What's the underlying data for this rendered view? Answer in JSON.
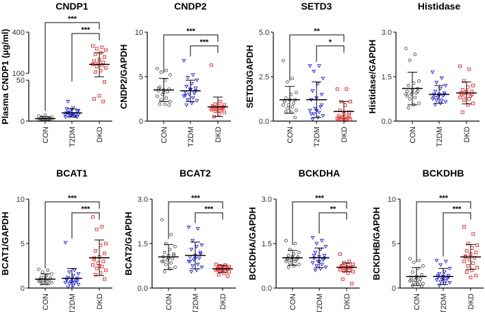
{
  "chart_data": [
    {
      "type": "scatter",
      "title": "CNDP1",
      "ylabel": "Plasma CNDP1 (µg/ml)",
      "categories": [
        "CON",
        "T2DM",
        "DKD"
      ],
      "ylim": [
        0,
        400
      ],
      "axis_break": [
        50,
        100
      ],
      "yticks": [
        0,
        50,
        100,
        400
      ],
      "ytick_labels": [
        "0",
        "50",
        "100",
        "400"
      ],
      "groups": [
        {
          "mean": 3,
          "sd": 2.5,
          "points": [
            1,
            2,
            3,
            2,
            4,
            5,
            3,
            2,
            1,
            3,
            4,
            6,
            2,
            3,
            5,
            2,
            1,
            3,
            7,
            2
          ]
        },
        {
          "mean": 10,
          "sd": 5,
          "points": [
            5,
            6,
            7,
            8,
            9,
            10,
            12,
            14,
            15,
            6,
            7,
            8,
            9,
            11,
            13,
            16,
            24,
            5,
            7,
            10
          ]
        },
        {
          "mean": 165,
          "sd": 85,
          "points": [
            300,
            290,
            280,
            270,
            250,
            240,
            220,
            200,
            190,
            180,
            170,
            165,
            160,
            150,
            140,
            120,
            110,
            48,
            31,
            27,
            24
          ]
        }
      ],
      "significance": [
        {
          "from": 0,
          "to": 2,
          "label": "***"
        },
        {
          "from": 1,
          "to": 2,
          "label": "***"
        }
      ]
    },
    {
      "type": "scatter",
      "title": "CNDP2",
      "ylabel": "CNDP2/GAPDH",
      "categories": [
        "CON",
        "T2DM",
        "DKD"
      ],
      "ylim": [
        0,
        10
      ],
      "yticks": [
        0,
        5,
        10
      ],
      "ytick_labels": [
        "0",
        "5",
        "10"
      ],
      "groups": [
        {
          "mean": 3.5,
          "sd": 1.3,
          "points": [
            5.9,
            5.7,
            5.5,
            5.2,
            4.6,
            3.8,
            3.6,
            3.5,
            3.4,
            3.3,
            3.0,
            2.8,
            2.6,
            2.4,
            2.2,
            1.9,
            1.9,
            1.8,
            3.2,
            3.7
          ]
        },
        {
          "mean": 3.4,
          "sd": 1.2,
          "points": [
            6.8,
            5.2,
            4.9,
            4.6,
            4.2,
            3.9,
            3.7,
            3.5,
            3.3,
            3.1,
            3.0,
            2.8,
            2.6,
            2.4,
            2.3,
            2.0,
            1.8,
            3.4,
            3.6,
            2.9
          ]
        },
        {
          "mean": 1.6,
          "sd": 1.1,
          "points": [
            6.3,
            2.2,
            1.9,
            1.8,
            1.7,
            1.6,
            1.5,
            1.5,
            1.4,
            1.4,
            1.3,
            1.3,
            1.2,
            1.1,
            1.0,
            0.8,
            0.5,
            1.6,
            1.5,
            1.7
          ]
        }
      ],
      "significance": [
        {
          "from": 0,
          "to": 2,
          "label": "***"
        },
        {
          "from": 1,
          "to": 2,
          "label": "***"
        }
      ]
    },
    {
      "type": "scatter",
      "title": "SETD3",
      "ylabel": "SETD3/GAPDH",
      "categories": [
        "CON",
        "T2DM",
        "DKD"
      ],
      "ylim": [
        0,
        5
      ],
      "yticks": [
        0,
        2.5,
        5
      ],
      "ytick_labels": [
        "0.0",
        "2.5",
        "5.0"
      ],
      "groups": [
        {
          "mean": 1.2,
          "sd": 0.75,
          "points": [
            3.4,
            2.4,
            2.2,
            1.6,
            1.5,
            1.3,
            1.2,
            1.2,
            1.1,
            1.0,
            0.9,
            0.9,
            0.8,
            0.7,
            0.6,
            0.5,
            0.5,
            0.2,
            1.2,
            1.1
          ]
        },
        {
          "mean": 1.2,
          "sd": 1.0,
          "points": [
            3.1,
            3.1,
            2.8,
            2.4,
            2.1,
            1.7,
            1.5,
            1.3,
            1.2,
            0.8,
            0.7,
            0.6,
            0.5,
            0.4,
            0.3,
            0.2,
            0.1,
            0.9,
            0.6,
            0.4
          ]
        },
        {
          "mean": 0.55,
          "sd": 0.55,
          "points": [
            1.8,
            1.8,
            1.1,
            1.1,
            0.9,
            0.6,
            0.5,
            0.4,
            0.3,
            0.2,
            0.2,
            0.15,
            0.1,
            0.1,
            0.1,
            0.05,
            0.2,
            0.3,
            0.15,
            0.1
          ]
        }
      ],
      "significance": [
        {
          "from": 0,
          "to": 2,
          "label": "**"
        },
        {
          "from": 1,
          "to": 2,
          "label": "*"
        }
      ]
    },
    {
      "type": "scatter",
      "title": "Histidase",
      "ylabel": "Histidase/GAPDH",
      "categories": [
        "CON",
        "T2DM",
        "DKD"
      ],
      "ylim": [
        0,
        3
      ],
      "yticks": [
        0,
        1.5,
        3
      ],
      "ytick_labels": [
        "0.0",
        "1.5",
        "3.0"
      ],
      "groups": [
        {
          "mean": 1.1,
          "sd": 0.55,
          "points": [
            2.45,
            2.25,
            2.05,
            1.35,
            1.28,
            1.2,
            1.1,
            1.05,
            1.0,
            0.95,
            0.9,
            0.9,
            0.8,
            0.75,
            0.6,
            0.55,
            0.45,
            1.0,
            0.95,
            0.85
          ]
        },
        {
          "mean": 0.9,
          "sd": 0.3,
          "points": [
            1.65,
            1.45,
            1.3,
            1.2,
            1.1,
            1.0,
            0.95,
            0.9,
            0.9,
            0.85,
            0.8,
            0.75,
            0.7,
            0.7,
            0.65,
            0.6,
            0.55,
            0.9,
            0.85,
            0.8
          ]
        },
        {
          "mean": 0.95,
          "sd": 0.37,
          "points": [
            1.85,
            1.75,
            1.35,
            1.2,
            1.15,
            1.05,
            1.0,
            0.95,
            0.9,
            0.85,
            0.85,
            0.8,
            0.75,
            0.7,
            0.6,
            0.55,
            0.3,
            0.9,
            1.0,
            0.95
          ]
        }
      ],
      "significance": []
    },
    {
      "type": "scatter",
      "title": "BCAT1",
      "ylabel": "BCAT1/GAPDH",
      "categories": [
        "CON",
        "T2DM",
        "DKD"
      ],
      "ylim": [
        0,
        10
      ],
      "yticks": [
        0,
        5,
        10
      ],
      "ytick_labels": [
        "0",
        "5",
        "10"
      ],
      "groups": [
        {
          "mean": 1.0,
          "sd": 0.6,
          "points": [
            2.1,
            2.0,
            1.8,
            1.6,
            1.4,
            1.2,
            1.1,
            1.0,
            1.0,
            0.9,
            0.9,
            0.8,
            0.7,
            0.6,
            0.6,
            0.5,
            0.5,
            1.1,
            1.3,
            0.8
          ]
        },
        {
          "mean": 1.1,
          "sd": 1.1,
          "points": [
            5.1,
            2.0,
            1.8,
            1.6,
            1.4,
            1.2,
            1.1,
            1.0,
            0.9,
            0.8,
            0.7,
            0.6,
            0.6,
            0.5,
            0.4,
            0.3,
            0.1,
            0.8,
            0.7,
            1.0
          ]
        },
        {
          "mean": 3.4,
          "sd": 2.0,
          "points": [
            8.0,
            6.9,
            6.6,
            5.0,
            4.8,
            4.2,
            3.9,
            3.5,
            3.4,
            3.0,
            2.8,
            2.6,
            2.4,
            2.2,
            2.0,
            1.7,
            1.5,
            1.0,
            2.5,
            3.2
          ]
        }
      ],
      "significance": [
        {
          "from": 0,
          "to": 2,
          "label": "***"
        },
        {
          "from": 1,
          "to": 2,
          "label": "***"
        }
      ]
    },
    {
      "type": "scatter",
      "title": "BCAT2",
      "ylabel": "BCAT2/GAPDH",
      "categories": [
        "CON",
        "T2DM",
        "DKD"
      ],
      "ylim": [
        0,
        3
      ],
      "yticks": [
        0,
        1.5,
        3
      ],
      "ytick_labels": [
        "0.0",
        "1.5",
        "3.0"
      ],
      "groups": [
        {
          "mean": 1.05,
          "sd": 0.42,
          "points": [
            2.3,
            1.8,
            1.5,
            1.4,
            1.3,
            1.2,
            1.15,
            1.1,
            1.05,
            1.0,
            0.95,
            0.9,
            0.85,
            0.8,
            0.7,
            0.65,
            0.55,
            1.1,
            1.0,
            0.9
          ]
        },
        {
          "mean": 1.1,
          "sd": 0.45,
          "points": [
            2.05,
            2.0,
            1.6,
            1.45,
            1.4,
            1.3,
            1.2,
            1.1,
            1.05,
            1.0,
            0.95,
            0.9,
            0.8,
            0.75,
            0.7,
            0.6,
            0.55,
            1.15,
            1.0,
            0.9
          ]
        },
        {
          "mean": 0.65,
          "sd": 0.12,
          "points": [
            0.8,
            0.78,
            0.75,
            0.72,
            0.7,
            0.68,
            0.67,
            0.66,
            0.65,
            0.64,
            0.62,
            0.6,
            0.58,
            0.56,
            0.55,
            0.5,
            0.45,
            0.4,
            0.7,
            0.63
          ]
        }
      ],
      "significance": [
        {
          "from": 0,
          "to": 2,
          "label": "***"
        },
        {
          "from": 1,
          "to": 2,
          "label": "***"
        }
      ]
    },
    {
      "type": "scatter",
      "title": "BCKDHA",
      "ylabel": "BCKDHA/GAPDH",
      "categories": [
        "CON",
        "T2DM",
        "DKD"
      ],
      "ylim": [
        0,
        3
      ],
      "yticks": [
        0,
        1.5,
        3
      ],
      "ytick_labels": [
        "0.0",
        "1.5",
        "3.0"
      ],
      "groups": [
        {
          "mean": 1.02,
          "sd": 0.25,
          "points": [
            1.6,
            1.5,
            1.3,
            1.2,
            1.15,
            1.1,
            1.05,
            1.0,
            1.0,
            0.95,
            0.95,
            0.9,
            0.9,
            0.85,
            0.8,
            0.75,
            0.7,
            1.0,
            1.05,
            0.95
          ]
        },
        {
          "mean": 1.02,
          "sd": 0.33,
          "points": [
            1.7,
            1.6,
            1.5,
            1.4,
            1.3,
            1.2,
            1.1,
            1.05,
            1.0,
            0.95,
            0.9,
            0.85,
            0.8,
            0.75,
            0.7,
            0.65,
            0.6,
            1.0,
            0.9,
            1.1
          ]
        },
        {
          "mean": 0.7,
          "sd": 0.15,
          "points": [
            1.15,
            0.9,
            0.85,
            0.8,
            0.78,
            0.75,
            0.72,
            0.7,
            0.7,
            0.68,
            0.65,
            0.62,
            0.6,
            0.58,
            0.55,
            0.5,
            0.3,
            0.15,
            0.7,
            0.75
          ]
        }
      ],
      "significance": [
        {
          "from": 0,
          "to": 2,
          "label": "***"
        },
        {
          "from": 1,
          "to": 2,
          "label": "**"
        }
      ]
    },
    {
      "type": "scatter",
      "title": "BCKDHB",
      "ylabel": "BCKDHB/GAPDH",
      "categories": [
        "CON",
        "T2DM",
        "DKD"
      ],
      "ylim": [
        0,
        10
      ],
      "yticks": [
        0,
        5,
        10
      ],
      "ytick_labels": [
        "0",
        "5",
        "10"
      ],
      "groups": [
        {
          "mean": 1.3,
          "sd": 1.0,
          "points": [
            3.3,
            3.1,
            2.9,
            2.5,
            2.2,
            1.8,
            1.5,
            1.3,
            1.2,
            1.0,
            0.9,
            0.8,
            0.7,
            0.6,
            0.5,
            0.4,
            0.3,
            0.2,
            1.1,
            0.9
          ]
        },
        {
          "mean": 1.3,
          "sd": 0.9,
          "points": [
            3.1,
            3.0,
            2.6,
            2.2,
            1.8,
            1.6,
            1.4,
            1.3,
            1.2,
            1.1,
            1.0,
            0.9,
            0.8,
            0.7,
            0.6,
            0.5,
            0.3,
            1.2,
            1.0,
            1.4
          ]
        },
        {
          "mean": 3.5,
          "sd": 1.4,
          "points": [
            6.9,
            6.1,
            5.0,
            4.8,
            4.5,
            4.2,
            4.0,
            3.8,
            3.6,
            3.4,
            3.2,
            3.0,
            2.8,
            2.5,
            2.3,
            2.0,
            1.8,
            1.4,
            1.2,
            3.5
          ]
        }
      ],
      "significance": [
        {
          "from": 0,
          "to": 2,
          "label": "***"
        },
        {
          "from": 1,
          "to": 2,
          "label": "***"
        }
      ]
    }
  ],
  "colors": {
    "CON": "#555555",
    "T2DM": "#2222ee",
    "DKD": "#ee2222",
    "axis": "#000000"
  },
  "markers": {
    "CON": "circle",
    "T2DM": "triangle-down",
    "DKD": "square"
  }
}
